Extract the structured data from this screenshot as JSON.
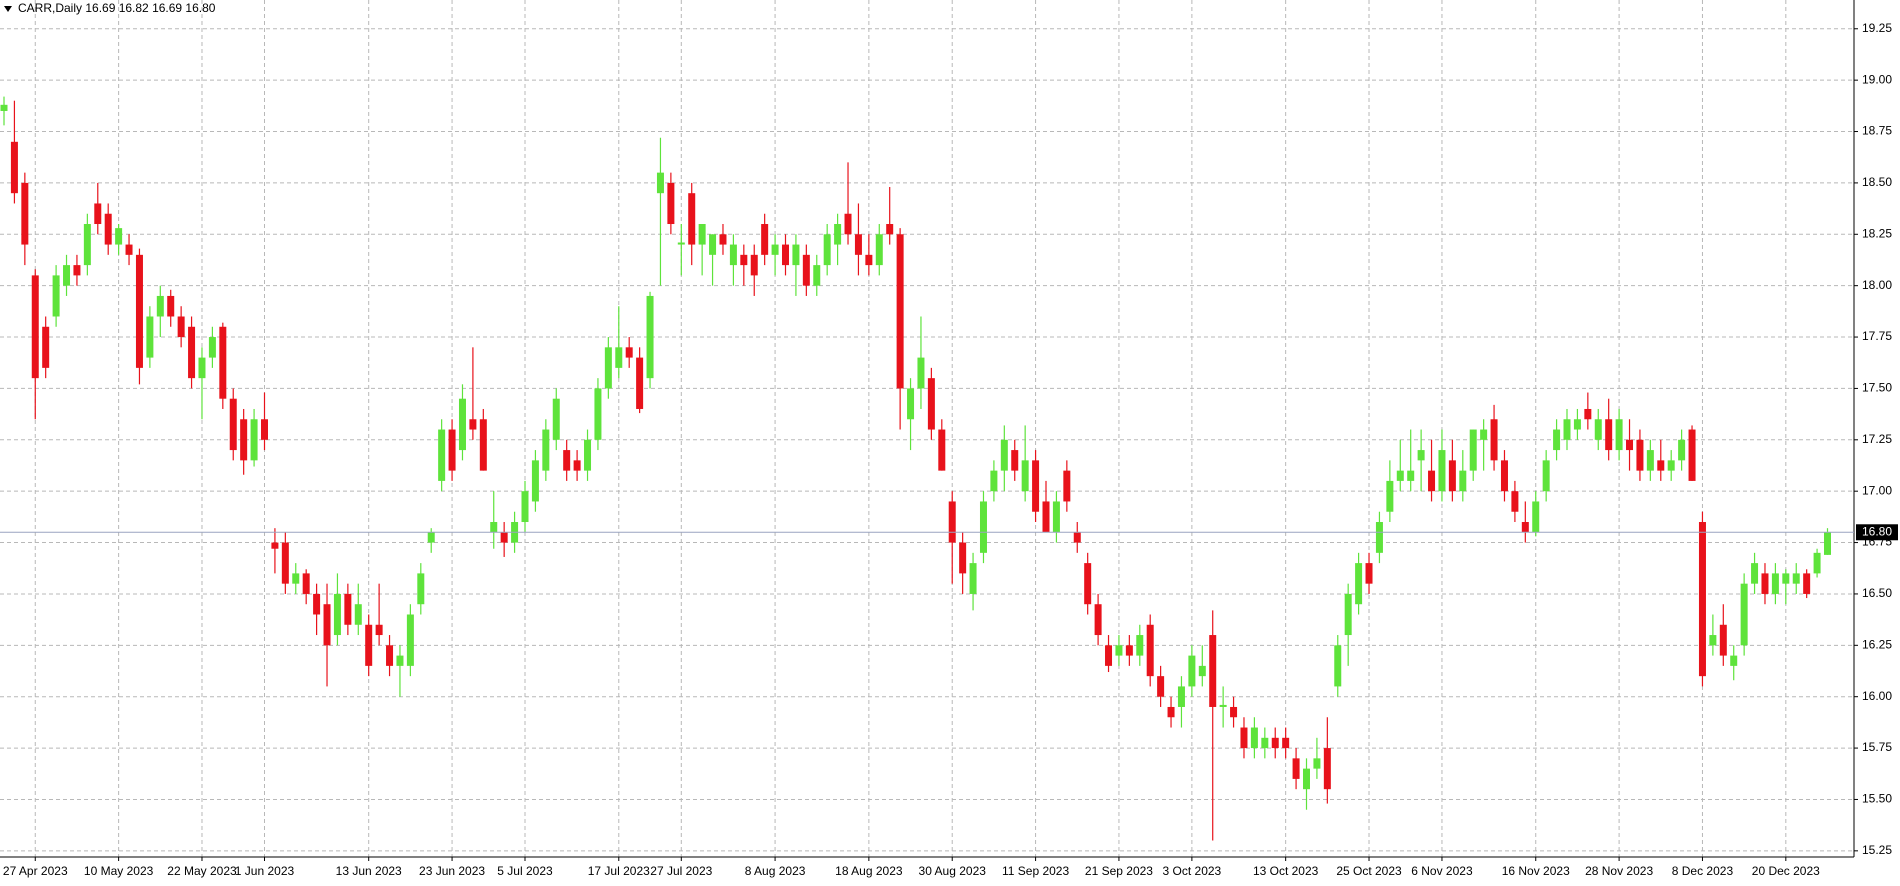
{
  "chart_data": {
    "type": "candlestick",
    "title": "CARR,Daily  16.69 16.82 16.69 16.80",
    "categories": [
      null,
      null,
      null,
      "27 Apr 2023",
      null,
      null,
      null,
      null,
      null,
      null,
      null,
      "10 May 2023",
      null,
      null,
      null,
      null,
      null,
      null,
      null,
      "22 May 2023",
      null,
      null,
      null,
      null,
      null,
      "1 Jun 2023",
      null,
      null,
      null,
      null,
      null,
      null,
      null,
      null,
      null,
      "13 Jun 2023",
      null,
      null,
      null,
      null,
      null,
      null,
      null,
      "23 Jun 2023",
      null,
      null,
      null,
      null,
      null,
      null,
      "5 Jul 2023",
      null,
      null,
      null,
      null,
      null,
      null,
      null,
      null,
      "17 Jul 2023",
      null,
      null,
      null,
      null,
      null,
      "27 Jul 2023",
      null,
      null,
      null,
      null,
      null,
      null,
      null,
      null,
      "8 Aug 2023",
      null,
      null,
      null,
      null,
      null,
      null,
      null,
      null,
      "18 Aug 2023",
      null,
      null,
      null,
      null,
      null,
      null,
      null,
      "30 Aug 2023",
      null,
      null,
      null,
      null,
      null,
      null,
      null,
      "11 Sep 2023",
      null,
      null,
      null,
      null,
      null,
      null,
      null,
      "21 Sep 2023",
      null,
      null,
      null,
      null,
      null,
      null,
      "3 Oct 2023",
      null,
      null,
      null,
      null,
      null,
      null,
      null,
      null,
      "13 Oct 2023",
      null,
      null,
      null,
      null,
      null,
      null,
      null,
      "25 Oct 2023",
      null,
      null,
      null,
      null,
      null,
      null,
      "6 Nov 2023",
      null,
      null,
      null,
      null,
      null,
      null,
      null,
      null,
      "16 Nov 2023",
      null,
      null,
      null,
      null,
      null,
      null,
      null,
      "28 Nov 2023",
      null,
      null,
      null,
      null,
      null,
      null,
      null,
      "8 Dec 2023",
      null,
      null,
      null,
      null,
      null,
      null,
      null,
      "20 Dec 2023",
      null,
      null,
      null,
      null
    ],
    "open": [
      18.85,
      18.7,
      18.5,
      18.05,
      17.8,
      17.85,
      18.0,
      18.1,
      18.1,
      18.4,
      18.35,
      18.2,
      18.2,
      18.15,
      17.65,
      17.85,
      17.95,
      17.85,
      17.8,
      17.55,
      17.65,
      17.8,
      17.45,
      17.35,
      17.15,
      17.35,
      16.75,
      16.75,
      16.55,
      16.6,
      16.5,
      16.45,
      16.3,
      16.5,
      16.35,
      16.35,
      16.35,
      16.25,
      16.15,
      16.15,
      16.45,
      16.75,
      17.05,
      17.3,
      17.2,
      17.35,
      17.35,
      16.8,
      16.8,
      16.75,
      16.85,
      16.95,
      17.1,
      17.25,
      17.2,
      17.15,
      17.1,
      17.25,
      17.5,
      17.6,
      17.7,
      17.65,
      17.55,
      18.45,
      18.5,
      18.2,
      18.45,
      18.2,
      18.15,
      18.25,
      18.1,
      18.15,
      18.15,
      18.3,
      18.15,
      18.2,
      18.1,
      18.15,
      18.0,
      18.1,
      18.2,
      18.35,
      18.25,
      18.15,
      18.1,
      18.3,
      18.25,
      17.35,
      17.5,
      17.55,
      17.3,
      16.95,
      16.75,
      16.5,
      16.7,
      17.0,
      17.1,
      17.2,
      17.0,
      17.15,
      16.95,
      16.8,
      17.1,
      16.8,
      16.65,
      16.45,
      16.25,
      16.2,
      16.25,
      16.2,
      16.35,
      16.1,
      15.95,
      15.95,
      16.05,
      16.1,
      16.3,
      15.95,
      15.95,
      15.85,
      15.75,
      15.75,
      15.8,
      15.8,
      15.7,
      15.55,
      15.65,
      15.75,
      16.05,
      16.3,
      16.45,
      16.65,
      16.7,
      16.9,
      17.05,
      17.05,
      17.15,
      17.1,
      17.0,
      17.15,
      17.0,
      17.1,
      17.25,
      17.35,
      17.15,
      17.0,
      16.85,
      16.8,
      17.0,
      17.2,
      17.25,
      17.3,
      17.4,
      17.25,
      17.35,
      17.2,
      17.25,
      17.25,
      17.1,
      17.15,
      17.1,
      17.15,
      17.3,
      16.85,
      16.25,
      16.35,
      16.15,
      16.25,
      16.55,
      16.6,
      16.5,
      16.55,
      16.55,
      16.6,
      16.6,
      16.69
    ],
    "high": [
      18.92,
      18.9,
      18.55,
      18.08,
      17.85,
      18.1,
      18.15,
      18.15,
      18.35,
      18.5,
      18.4,
      18.3,
      18.25,
      18.18,
      17.9,
      18.0,
      17.98,
      17.9,
      17.85,
      17.7,
      17.8,
      17.82,
      17.5,
      17.4,
      17.4,
      17.48,
      16.82,
      16.8,
      16.65,
      16.62,
      16.55,
      16.55,
      16.6,
      16.55,
      16.55,
      16.4,
      16.55,
      16.3,
      16.25,
      16.45,
      16.65,
      16.82,
      17.35,
      17.35,
      17.52,
      17.7,
      17.4,
      17.0,
      16.85,
      16.9,
      17.05,
      17.2,
      17.35,
      17.5,
      17.25,
      17.2,
      17.3,
      17.55,
      17.75,
      17.9,
      17.75,
      17.7,
      17.97,
      18.72,
      18.55,
      18.3,
      18.5,
      18.3,
      18.25,
      18.3,
      18.25,
      18.2,
      18.2,
      18.35,
      18.25,
      18.25,
      18.25,
      18.2,
      18.15,
      18.3,
      18.35,
      18.6,
      18.4,
      18.25,
      18.3,
      18.48,
      18.28,
      17.55,
      17.85,
      17.6,
      17.35,
      17.0,
      16.8,
      16.7,
      17.0,
      17.15,
      17.32,
      17.25,
      17.32,
      17.2,
      17.05,
      17.0,
      17.15,
      16.85,
      16.7,
      16.5,
      16.3,
      16.3,
      16.3,
      16.35,
      16.4,
      16.15,
      16.0,
      16.1,
      16.25,
      16.25,
      16.42,
      16.05,
      16.0,
      15.9,
      15.9,
      15.85,
      15.85,
      15.85,
      15.75,
      15.7,
      15.8,
      15.9,
      16.3,
      16.55,
      16.7,
      16.7,
      16.9,
      17.15,
      17.25,
      17.3,
      17.3,
      17.25,
      17.3,
      17.25,
      17.2,
      17.3,
      17.35,
      17.42,
      17.2,
      17.05,
      16.95,
      17.0,
      17.2,
      17.35,
      17.4,
      17.4,
      17.48,
      17.4,
      17.45,
      17.4,
      17.35,
      17.3,
      17.25,
      17.25,
      17.2,
      17.3,
      17.32,
      16.9,
      16.4,
      16.45,
      16.25,
      16.6,
      16.7,
      16.65,
      16.65,
      16.62,
      16.65,
      16.62,
      16.72,
      16.82
    ],
    "low": [
      18.78,
      18.4,
      18.1,
      17.35,
      17.55,
      17.8,
      17.95,
      18.0,
      18.05,
      18.25,
      18.15,
      18.15,
      18.1,
      17.52,
      17.6,
      17.75,
      17.8,
      17.7,
      17.5,
      17.35,
      17.6,
      17.4,
      17.15,
      17.08,
      17.12,
      17.2,
      16.6,
      16.5,
      16.5,
      16.45,
      16.3,
      16.05,
      16.25,
      16.3,
      16.3,
      16.1,
      16.25,
      16.1,
      16.0,
      16.1,
      16.4,
      16.7,
      17.0,
      17.05,
      17.15,
      17.25,
      17.1,
      16.72,
      16.68,
      16.7,
      16.8,
      16.9,
      17.05,
      17.2,
      17.05,
      17.05,
      17.05,
      17.2,
      17.45,
      17.55,
      17.6,
      17.38,
      17.5,
      18.0,
      18.25,
      18.05,
      18.1,
      18.05,
      18.0,
      18.15,
      18.0,
      18.0,
      17.95,
      18.1,
      18.05,
      18.05,
      17.95,
      17.95,
      17.95,
      18.05,
      18.1,
      18.2,
      18.05,
      18.05,
      18.05,
      18.2,
      17.3,
      17.2,
      17.4,
      17.25,
      17.1,
      16.55,
      16.5,
      16.42,
      16.65,
      16.95,
      17.0,
      17.05,
      16.95,
      16.85,
      16.8,
      16.75,
      16.9,
      16.7,
      16.4,
      16.25,
      16.12,
      16.15,
      16.15,
      16.15,
      16.05,
      15.95,
      15.85,
      15.85,
      16.0,
      16.05,
      15.3,
      15.85,
      15.85,
      15.7,
      15.7,
      15.7,
      15.7,
      15.7,
      15.55,
      15.45,
      15.6,
      15.48,
      16.0,
      16.15,
      16.4,
      16.5,
      16.65,
      16.85,
      17.0,
      17.0,
      17.0,
      16.95,
      16.95,
      16.95,
      16.95,
      17.05,
      17.1,
      17.1,
      16.95,
      16.85,
      16.75,
      16.78,
      16.95,
      17.15,
      17.2,
      17.25,
      17.3,
      17.2,
      17.15,
      17.15,
      17.1,
      17.05,
      17.05,
      17.05,
      17.05,
      17.1,
      17.05,
      16.05,
      16.2,
      16.15,
      16.08,
      16.2,
      16.5,
      16.45,
      16.45,
      16.45,
      16.5,
      16.48,
      16.58,
      16.69
    ],
    "close": [
      18.88,
      18.45,
      18.2,
      17.55,
      17.6,
      18.05,
      18.1,
      18.05,
      18.3,
      18.3,
      18.2,
      18.28,
      18.15,
      17.6,
      17.85,
      17.95,
      17.85,
      17.75,
      17.55,
      17.65,
      17.75,
      17.45,
      17.2,
      17.15,
      17.35,
      17.25,
      16.72,
      16.55,
      16.6,
      16.5,
      16.4,
      16.25,
      16.5,
      16.35,
      16.45,
      16.15,
      16.3,
      16.15,
      16.2,
      16.4,
      16.6,
      16.8,
      17.3,
      17.1,
      17.45,
      17.3,
      17.1,
      16.85,
      16.75,
      16.85,
      17.0,
      17.15,
      17.3,
      17.45,
      17.1,
      17.1,
      17.25,
      17.5,
      17.7,
      17.7,
      17.65,
      17.4,
      17.95,
      18.55,
      18.3,
      18.21,
      18.2,
      18.3,
      18.25,
      18.2,
      18.2,
      18.1,
      18.05,
      18.15,
      18.2,
      18.1,
      18.2,
      18.0,
      18.1,
      18.25,
      18.3,
      18.25,
      18.15,
      18.1,
      18.25,
      18.25,
      17.5,
      17.5,
      17.65,
      17.3,
      17.1,
      16.75,
      16.6,
      16.65,
      16.95,
      17.1,
      17.25,
      17.1,
      17.15,
      16.9,
      16.8,
      16.95,
      16.95,
      16.75,
      16.45,
      16.3,
      16.15,
      16.25,
      16.2,
      16.3,
      16.1,
      16.0,
      15.9,
      16.05,
      16.2,
      16.15,
      15.95,
      15.96,
      15.9,
      15.75,
      15.85,
      15.8,
      15.75,
      15.75,
      15.6,
      15.65,
      15.7,
      15.55,
      16.25,
      16.5,
      16.65,
      16.55,
      16.85,
      17.05,
      17.1,
      17.1,
      17.2,
      17.0,
      17.2,
      17.0,
      17.1,
      17.3,
      17.3,
      17.15,
      17.0,
      16.9,
      16.8,
      16.95,
      17.15,
      17.3,
      17.35,
      17.35,
      17.35,
      17.35,
      17.2,
      17.35,
      17.2,
      17.1,
      17.2,
      17.1,
      17.15,
      17.25,
      17.05,
      16.1,
      16.3,
      16.2,
      16.2,
      16.55,
      16.65,
      16.5,
      16.6,
      16.6,
      16.6,
      16.5,
      16.7,
      16.8
    ],
    "up_color": "#5ee33b",
    "down_color": "#e8121b",
    "ylim": [
      15.22,
      19.39
    ],
    "yticks": [
      {
        "value": 15.25,
        "label": "15.25"
      },
      {
        "value": 15.5,
        "label": "15.50"
      },
      {
        "value": 15.75,
        "label": "15.75"
      },
      {
        "value": 16,
        "label": "16.00"
      },
      {
        "value": 16.25,
        "label": "16.25"
      },
      {
        "value": 16.5,
        "label": "16.50"
      },
      {
        "value": 16.75,
        "label": "16.75"
      },
      {
        "value": 17,
        "label": "17.00"
      },
      {
        "value": 17.25,
        "label": "17.25"
      },
      {
        "value": 17.5,
        "label": "17.50"
      },
      {
        "value": 17.75,
        "label": "17.75"
      },
      {
        "value": 18,
        "label": "18.00"
      },
      {
        "value": 18.25,
        "label": "18.25"
      },
      {
        "value": 18.5,
        "label": "18.50"
      },
      {
        "value": 18.75,
        "label": "18.75"
      },
      {
        "value": 19,
        "label": "19.00"
      },
      {
        "value": 19.25,
        "label": "19.25"
      }
    ],
    "last_price": {
      "value": 16.8,
      "label": "16.80"
    },
    "grid": true
  }
}
